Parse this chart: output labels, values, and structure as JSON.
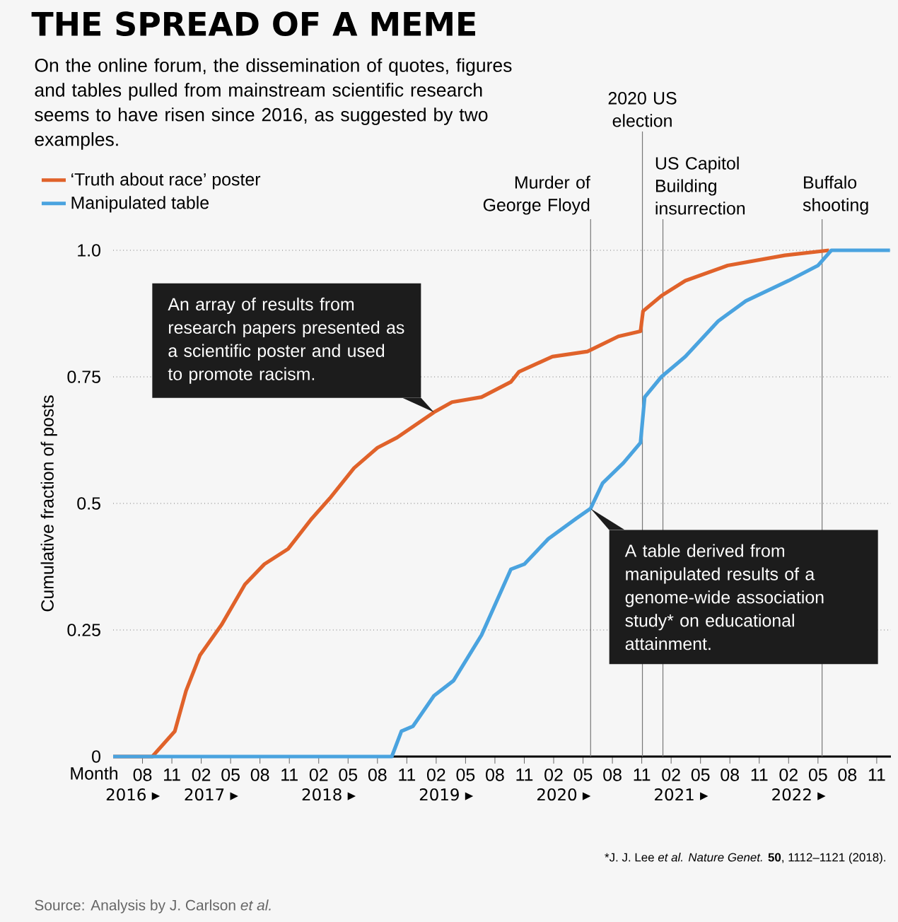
{
  "chart_data": {
    "type": "line",
    "title": "THE SPREAD OF A MEME",
    "subtitle": "On the online forum, the dissemination of quotes, figures and tables pulled from mainstream scientific research seems to have risen since 2016, as suggested by two examples.",
    "xlabel": "Month",
    "ylabel": "Cumulative fraction of posts",
    "xlim": [
      "2016-05-01",
      "2022-12-15"
    ],
    "xticks": [
      {
        "value": "2016-08",
        "label": "08"
      },
      {
        "value": "2016-11",
        "label": "11"
      },
      {
        "value": "2017-02",
        "label": "02"
      },
      {
        "value": "2017-05",
        "label": "05"
      },
      {
        "value": "2017-08",
        "label": "08"
      },
      {
        "value": "2017-11",
        "label": "11"
      },
      {
        "value": "2018-02",
        "label": "02"
      },
      {
        "value": "2018-05",
        "label": "05"
      },
      {
        "value": "2018-08",
        "label": "08"
      },
      {
        "value": "2018-11",
        "label": "11"
      },
      {
        "value": "2019-02",
        "label": "02"
      },
      {
        "value": "2019-05",
        "label": "05"
      },
      {
        "value": "2019-08",
        "label": "08"
      },
      {
        "value": "2019-11",
        "label": "11"
      },
      {
        "value": "2020-02",
        "label": "02"
      },
      {
        "value": "2020-05",
        "label": "05"
      },
      {
        "value": "2020-08",
        "label": "08"
      },
      {
        "value": "2020-11",
        "label": "11"
      },
      {
        "value": "2021-02",
        "label": "02"
      },
      {
        "value": "2021-05",
        "label": "05"
      },
      {
        "value": "2021-08",
        "label": "08"
      },
      {
        "value": "2021-11",
        "label": "11"
      },
      {
        "value": "2022-02",
        "label": "02"
      },
      {
        "value": "2022-05",
        "label": "05"
      },
      {
        "value": "2022-08",
        "label": "08"
      },
      {
        "value": "2022-11",
        "label": "11"
      }
    ],
    "x2lim": [
      "2016-05-01",
      "2022-12-15"
    ],
    "x2ticks": [
      {
        "value": "2016-07",
        "label": "2016 ▸"
      },
      {
        "value": "2017-03",
        "label": "2017 ▸"
      },
      {
        "value": "2018-03",
        "label": "2018 ▸"
      },
      {
        "value": "2019-03",
        "label": "2019 ▸"
      },
      {
        "value": "2020-03",
        "label": "2020 ▸"
      },
      {
        "value": "2021-03",
        "label": "2021 ▸"
      },
      {
        "value": "2022-03",
        "label": "2022 ▸"
      }
    ],
    "ylim": [
      0,
      1
    ],
    "yticks": [
      0,
      0.25,
      0.5,
      0.75,
      {
        "value": 1,
        "label": "1.0"
      }
    ],
    "grid": "y",
    "legend": "top left",
    "series": [
      {
        "name": "‘Truth about race’ poster",
        "color": "#e0622a",
        "x": [
          "2016-05-01",
          "2016-09-01",
          "2016-11-10",
          "2016-12-15",
          "2017-01-28",
          "2017-04-03",
          "2017-06-15",
          "2017-08-15",
          "2017-10-28",
          "2018-01-10",
          "2018-03-05",
          "2018-05-20",
          "2018-08-01",
          "2018-10-01",
          "2019-01-25",
          "2019-03-20",
          "2019-06-20",
          "2019-09-20",
          "2019-10-15",
          "2020-01-28",
          "2020-05-15",
          "2020-08-20",
          "2020-10-28",
          "2020-11-05",
          "2021-01-01",
          "2021-03-15",
          "2021-07-25",
          "2022-01-20",
          "2022-06-05"
        ],
        "values": [
          0,
          0,
          0.05,
          0.13,
          0.2,
          0.26,
          0.34,
          0.38,
          0.41,
          0.47,
          0.51,
          0.57,
          0.61,
          0.63,
          0.68,
          0.7,
          0.71,
          0.74,
          0.76,
          0.79,
          0.8,
          0.83,
          0.84,
          0.88,
          0.91,
          0.94,
          0.97,
          0.99,
          1.0
        ]
      },
      {
        "name": "Manipulated table",
        "color": "#4aa3df",
        "x": [
          "2016-05-01",
          "2018-09-15",
          "2018-10-15",
          "2018-11-20",
          "2019-01-25",
          "2019-03-25",
          "2019-06-20",
          "2019-09-20",
          "2019-11-01",
          "2020-01-15",
          "2020-04-10",
          "2020-05-25",
          "2020-07-01",
          "2020-09-05",
          "2020-10-28",
          "2020-11-10",
          "2021-01-01",
          "2021-03-15",
          "2021-06-25",
          "2021-09-20",
          "2022-02-01",
          "2022-05-01",
          "2022-06-12",
          "2022-12-12"
        ],
        "values": [
          0,
          0,
          0.05,
          0.06,
          0.12,
          0.15,
          0.24,
          0.37,
          0.38,
          0.43,
          0.47,
          0.49,
          0.54,
          0.58,
          0.62,
          0.71,
          0.75,
          0.79,
          0.86,
          0.9,
          0.94,
          0.97,
          1.0,
          1.0
        ]
      }
    ],
    "ref_lines": [
      {
        "axis": "x",
        "value": "2020-05-25",
        "label": "Murder of George Floyd",
        "color": "#777777"
      },
      {
        "axis": "x",
        "value": "2020-11-03",
        "label": "2020 US election",
        "color": "#777777"
      },
      {
        "axis": "x",
        "value": "2021-01-06",
        "label": "US Capitol Building insurrection",
        "color": "#777777"
      },
      {
        "axis": "x",
        "value": "2022-05-14",
        "label": "Buffalo shooting",
        "color": "#777777"
      }
    ],
    "annotations": [
      {
        "text": "An array of results from research papers presented as a scientific poster and used to promote racism.",
        "x": "2019-01-25",
        "y": 0.68
      },
      {
        "text": "A table derived from manipulated results of a genome-wide association study* on educational attainment.",
        "x": "2020-05-25",
        "y": 0.49
      },
      "*J. J. Lee *et al.* *Nature Genet.* **50**, 1112–1121 (2018).",
      "Source: Analysis by J. Carlson *et al.*"
    ]
  }
}
